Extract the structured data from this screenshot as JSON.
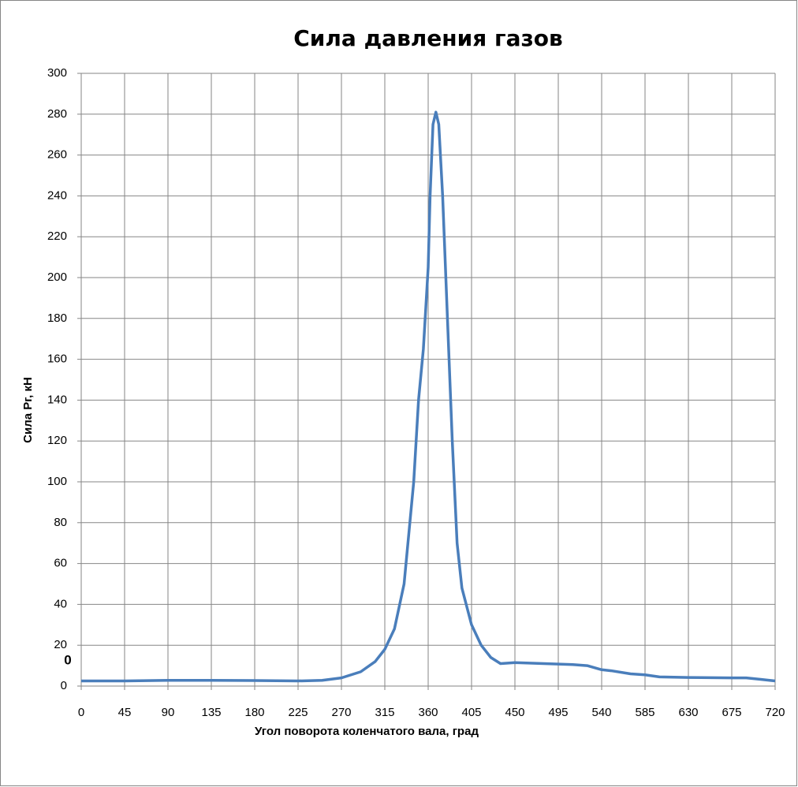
{
  "chart_data": {
    "type": "line",
    "title": "Сила давления газов",
    "x_label": "Угол поворота коленчатого вала, град",
    "y_label": "Сила Рг, кН",
    "annotation": "0",
    "x": [
      0,
      45,
      90,
      135,
      180,
      225,
      250,
      270,
      290,
      305,
      315,
      325,
      335,
      345,
      350,
      355,
      360,
      362,
      365,
      368,
      371,
      375,
      380,
      385,
      390,
      395,
      405,
      415,
      425,
      435,
      450,
      480,
      510,
      525,
      540,
      550,
      570,
      585,
      600,
      630,
      675,
      690,
      705,
      720
    ],
    "series": [
      {
        "name": "Pг",
        "color": "#4a7ebb",
        "values": [
          2.5,
          2.5,
          2.8,
          2.8,
          2.7,
          2.5,
          2.8,
          4,
          7,
          12,
          18,
          28,
          50,
          100,
          140,
          165,
          205,
          240,
          275,
          281,
          275,
          240,
          180,
          120,
          70,
          48,
          30,
          20,
          14,
          11,
          11.5,
          11,
          10.5,
          10,
          8,
          7.5,
          6,
          5.5,
          4.5,
          4.2,
          4,
          4,
          3.3,
          2.5
        ]
      }
    ],
    "xlim": [
      0,
      720
    ],
    "xticks": [
      0,
      45,
      90,
      135,
      180,
      225,
      270,
      315,
      360,
      405,
      450,
      495,
      540,
      585,
      630,
      675,
      720
    ],
    "ylim": [
      0,
      300
    ],
    "yticks": [
      0,
      20,
      40,
      60,
      80,
      100,
      120,
      140,
      160,
      180,
      200,
      220,
      240,
      260,
      280,
      300
    ],
    "grid": true
  }
}
